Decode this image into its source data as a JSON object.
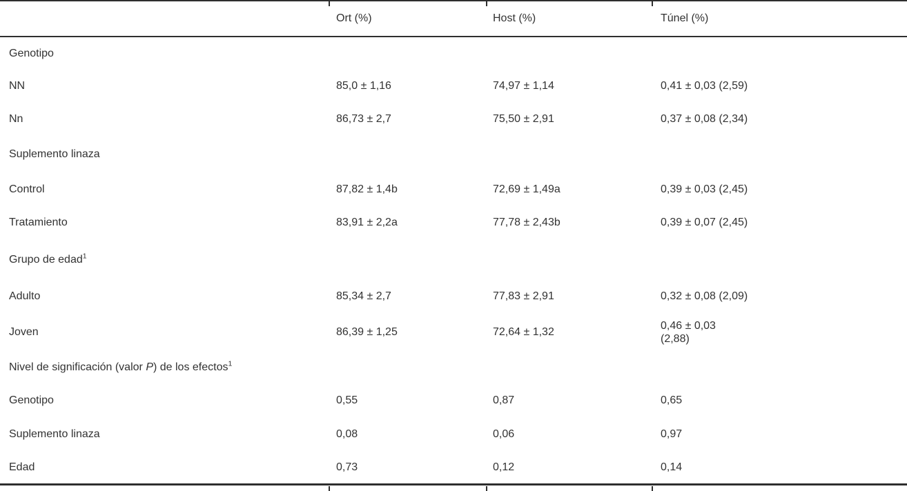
{
  "colors": {
    "background": "#ffffff",
    "text": "#323232",
    "rule": "#2e2e2e"
  },
  "header": {
    "col0": "",
    "col1": "Ort (%)",
    "col2": "Host (%)",
    "col3": "Túnel (%)"
  },
  "rows": [
    {
      "label": "Genotipo"
    },
    {
      "label": "NN",
      "ort": "85,0 ± 1,16",
      "host": "74,97 ± 1,14",
      "tunel": "0,41 ± 0,03 (2,59)"
    },
    {
      "label": "Nn",
      "ort": "86,73 ± 2,7",
      "host": "75,50 ± 2,91",
      "tunel": "0,37 ± 0,08 (2,34)"
    },
    {
      "label": "Suplemento linaza"
    },
    {
      "label": "Control",
      "ort": "87,82 ± 1,4b",
      "host": "72,69 ± 1,49a",
      "tunel": "0,39 ± 0,03 (2,45)"
    },
    {
      "label": "Tratamiento",
      "ort": "83,91 ± 2,2a",
      "host": "77,78 ± 2,43b",
      "tunel": "0,39 ± 0,07 (2,45)"
    },
    {
      "label": "Grupo de edad",
      "label_sup": "1"
    },
    {
      "label": "Adulto",
      "ort": "85,34 ± 2,7",
      "host": "77,83 ± 2,91",
      "tunel": "0,32 ± 0,08 (2,09)"
    },
    {
      "label": "Joven",
      "ort": "86,39 ± 1,25",
      "host": "72,64 ± 1,32",
      "tunel_line1": "0,46 ± 0,03",
      "tunel_line2": "(2,88)"
    },
    {
      "label_pre": "Nivel de significación (valor ",
      "label_italic": "P",
      "label_post": ") de los efectos",
      "label_sup": "1"
    },
    {
      "label": "Genotipo",
      "ort": "0,55",
      "host": "0,87",
      "tunel": "0,65"
    },
    {
      "label": "Suplemento linaza",
      "ort": "0,08",
      "host": "0,06",
      "tunel": "0,97"
    },
    {
      "label": "Edad",
      "ort": "0,73",
      "host": "0,12",
      "tunel": "0,14"
    }
  ]
}
